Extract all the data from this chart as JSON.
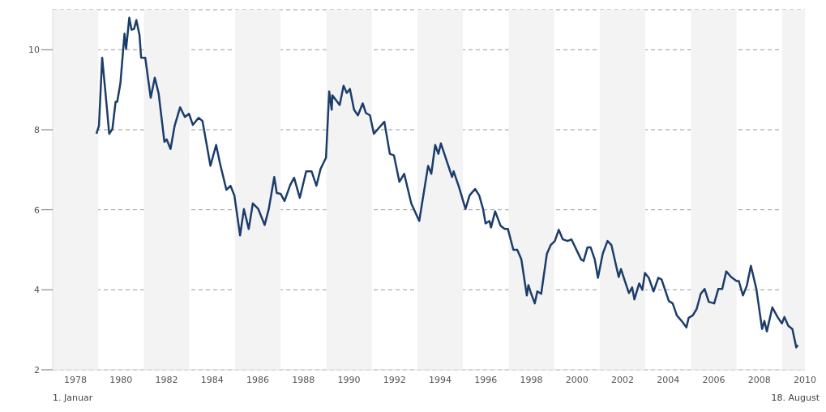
{
  "chart_data": {
    "type": "line",
    "x": [
      1978.92,
      1979.03,
      1979.17,
      1979.31,
      1979.48,
      1979.62,
      1979.76,
      1979.83,
      1979.97,
      1980.15,
      1980.22,
      1980.36,
      1980.46,
      1980.57,
      1980.67,
      1980.81,
      1980.88,
      1981.06,
      1981.3,
      1981.48,
      1981.65,
      1981.9,
      1982.0,
      1982.17,
      1982.35,
      1982.59,
      1982.8,
      1982.98,
      1983.15,
      1983.4,
      1983.57,
      1983.92,
      1984.17,
      1984.34,
      1984.62,
      1984.8,
      1984.97,
      1985.22,
      1985.39,
      1985.6,
      1985.78,
      1986.02,
      1986.3,
      1986.48,
      1986.72,
      1986.83,
      1987.0,
      1987.17,
      1987.42,
      1987.59,
      1987.84,
      1988.12,
      1988.36,
      1988.57,
      1988.75,
      1988.99,
      1989.13,
      1989.24,
      1989.27,
      1989.59,
      1989.76,
      1989.9,
      1990.04,
      1990.22,
      1990.39,
      1990.6,
      1990.74,
      1990.92,
      1991.09,
      1991.27,
      1991.55,
      1991.79,
      1991.97,
      1992.21,
      1992.42,
      1992.73,
      1993.08,
      1993.47,
      1993.61,
      1993.78,
      1993.92,
      1994.03,
      1994.24,
      1994.52,
      1994.59,
      1994.83,
      1995.11,
      1995.29,
      1995.53,
      1995.71,
      1995.88,
      1995.99,
      1996.16,
      1996.23,
      1996.41,
      1996.65,
      1996.83,
      1996.97,
      1997.21,
      1997.38,
      1997.56,
      1997.8,
      1997.87,
      1997.98,
      1998.15,
      1998.26,
      1998.43,
      1998.68,
      1998.85,
      1999.03,
      1999.2,
      1999.38,
      1999.59,
      1999.76,
      2000.18,
      2000.29,
      2000.46,
      2000.6,
      2000.78,
      2000.92,
      2001.13,
      2001.34,
      2001.51,
      2001.83,
      2001.93,
      2002.1,
      2002.28,
      2002.42,
      2002.52,
      2002.73,
      2002.87,
      2002.98,
      2003.15,
      2003.36,
      2003.57,
      2003.71,
      2004.03,
      2004.2,
      2004.38,
      2004.62,
      2004.8,
      2004.9,
      2005.08,
      2005.25,
      2005.43,
      2005.6,
      2005.78,
      2006.02,
      2006.2,
      2006.37,
      2006.55,
      2006.76,
      2007.0,
      2007.1,
      2007.28,
      2007.45,
      2007.63,
      2007.87,
      2008.12,
      2008.22,
      2008.33,
      2008.57,
      2008.82,
      2008.99,
      2009.1,
      2009.27,
      2009.45,
      2009.62,
      2009.69
    ],
    "series": [
      {
        "color": "#1c3d6b",
        "values": [
          7.9,
          8.1,
          9.8,
          8.96,
          7.9,
          8.02,
          8.7,
          8.7,
          9.16,
          10.4,
          10.02,
          10.8,
          10.5,
          10.52,
          10.74,
          10.36,
          9.8,
          9.8,
          8.8,
          9.3,
          8.9,
          7.7,
          7.76,
          7.52,
          8.1,
          8.56,
          8.32,
          8.4,
          8.12,
          8.3,
          8.22,
          7.1,
          7.62,
          7.16,
          6.5,
          6.6,
          6.36,
          5.36,
          6.02,
          5.52,
          6.16,
          6.02,
          5.62,
          6.02,
          6.82,
          6.42,
          6.4,
          6.22,
          6.62,
          6.8,
          6.3,
          6.96,
          6.96,
          6.6,
          7.02,
          7.3,
          8.96,
          8.5,
          8.86,
          8.62,
          9.1,
          8.92,
          9.02,
          8.5,
          8.36,
          8.66,
          8.42,
          8.36,
          7.9,
          8.02,
          8.2,
          7.4,
          7.36,
          6.7,
          6.9,
          6.16,
          5.72,
          7.1,
          6.9,
          7.62,
          7.4,
          7.66,
          7.3,
          6.82,
          6.96,
          6.56,
          6.02,
          6.36,
          6.52,
          6.36,
          6.02,
          5.66,
          5.72,
          5.56,
          5.96,
          5.6,
          5.52,
          5.52,
          5.0,
          5.0,
          4.76,
          3.86,
          4.12,
          3.92,
          3.66,
          3.96,
          3.9,
          4.9,
          5.12,
          5.22,
          5.5,
          5.26,
          5.22,
          5.26,
          4.76,
          4.72,
          5.06,
          5.06,
          4.76,
          4.3,
          4.9,
          5.22,
          5.12,
          4.32,
          4.52,
          4.22,
          3.92,
          4.06,
          3.76,
          4.16,
          4.0,
          4.42,
          4.3,
          3.96,
          4.3,
          4.26,
          3.72,
          3.66,
          3.36,
          3.2,
          3.06,
          3.3,
          3.36,
          3.52,
          3.9,
          4.02,
          3.7,
          3.66,
          4.02,
          4.02,
          4.46,
          4.32,
          4.22,
          4.22,
          3.86,
          4.1,
          4.6,
          4.02,
          3.02,
          3.22,
          2.96,
          3.56,
          3.3,
          3.16,
          3.32,
          3.1,
          3.02,
          2.56,
          2.62
        ]
      }
    ],
    "xlim": [
      1977,
      2010
    ],
    "xticks": [
      1978,
      1980,
      1982,
      1984,
      1986,
      1988,
      1990,
      1992,
      1994,
      1996,
      1998,
      2000,
      2002,
      2004,
      2006,
      2008,
      2010
    ],
    "ylim": [
      2,
      11
    ],
    "yticks": [
      2,
      4,
      6,
      8,
      10
    ],
    "grid": "y",
    "bands": [
      {
        "axis": "x",
        "from": 1977,
        "to": 1979,
        "color": "#f3f3f3"
      },
      {
        "axis": "x",
        "from": 1981,
        "to": 1983,
        "color": "#f3f3f3"
      },
      {
        "axis": "x",
        "from": 1985,
        "to": 1987,
        "color": "#f3f3f3"
      },
      {
        "axis": "x",
        "from": 1989,
        "to": 1991,
        "color": "#f3f3f3"
      },
      {
        "axis": "x",
        "from": 1993,
        "to": 1995,
        "color": "#f3f3f3"
      },
      {
        "axis": "x",
        "from": 1997,
        "to": 1999,
        "color": "#f3f3f3"
      },
      {
        "axis": "x",
        "from": 2001,
        "to": 2003,
        "color": "#f3f3f3"
      },
      {
        "axis": "x",
        "from": 2005,
        "to": 2007,
        "color": "#f3f3f3"
      },
      {
        "axis": "x",
        "from": 2009,
        "to": 2010,
        "color": "#f3f3f3"
      }
    ],
    "annotations": [
      "1. Januar",
      "18. August"
    ]
  }
}
